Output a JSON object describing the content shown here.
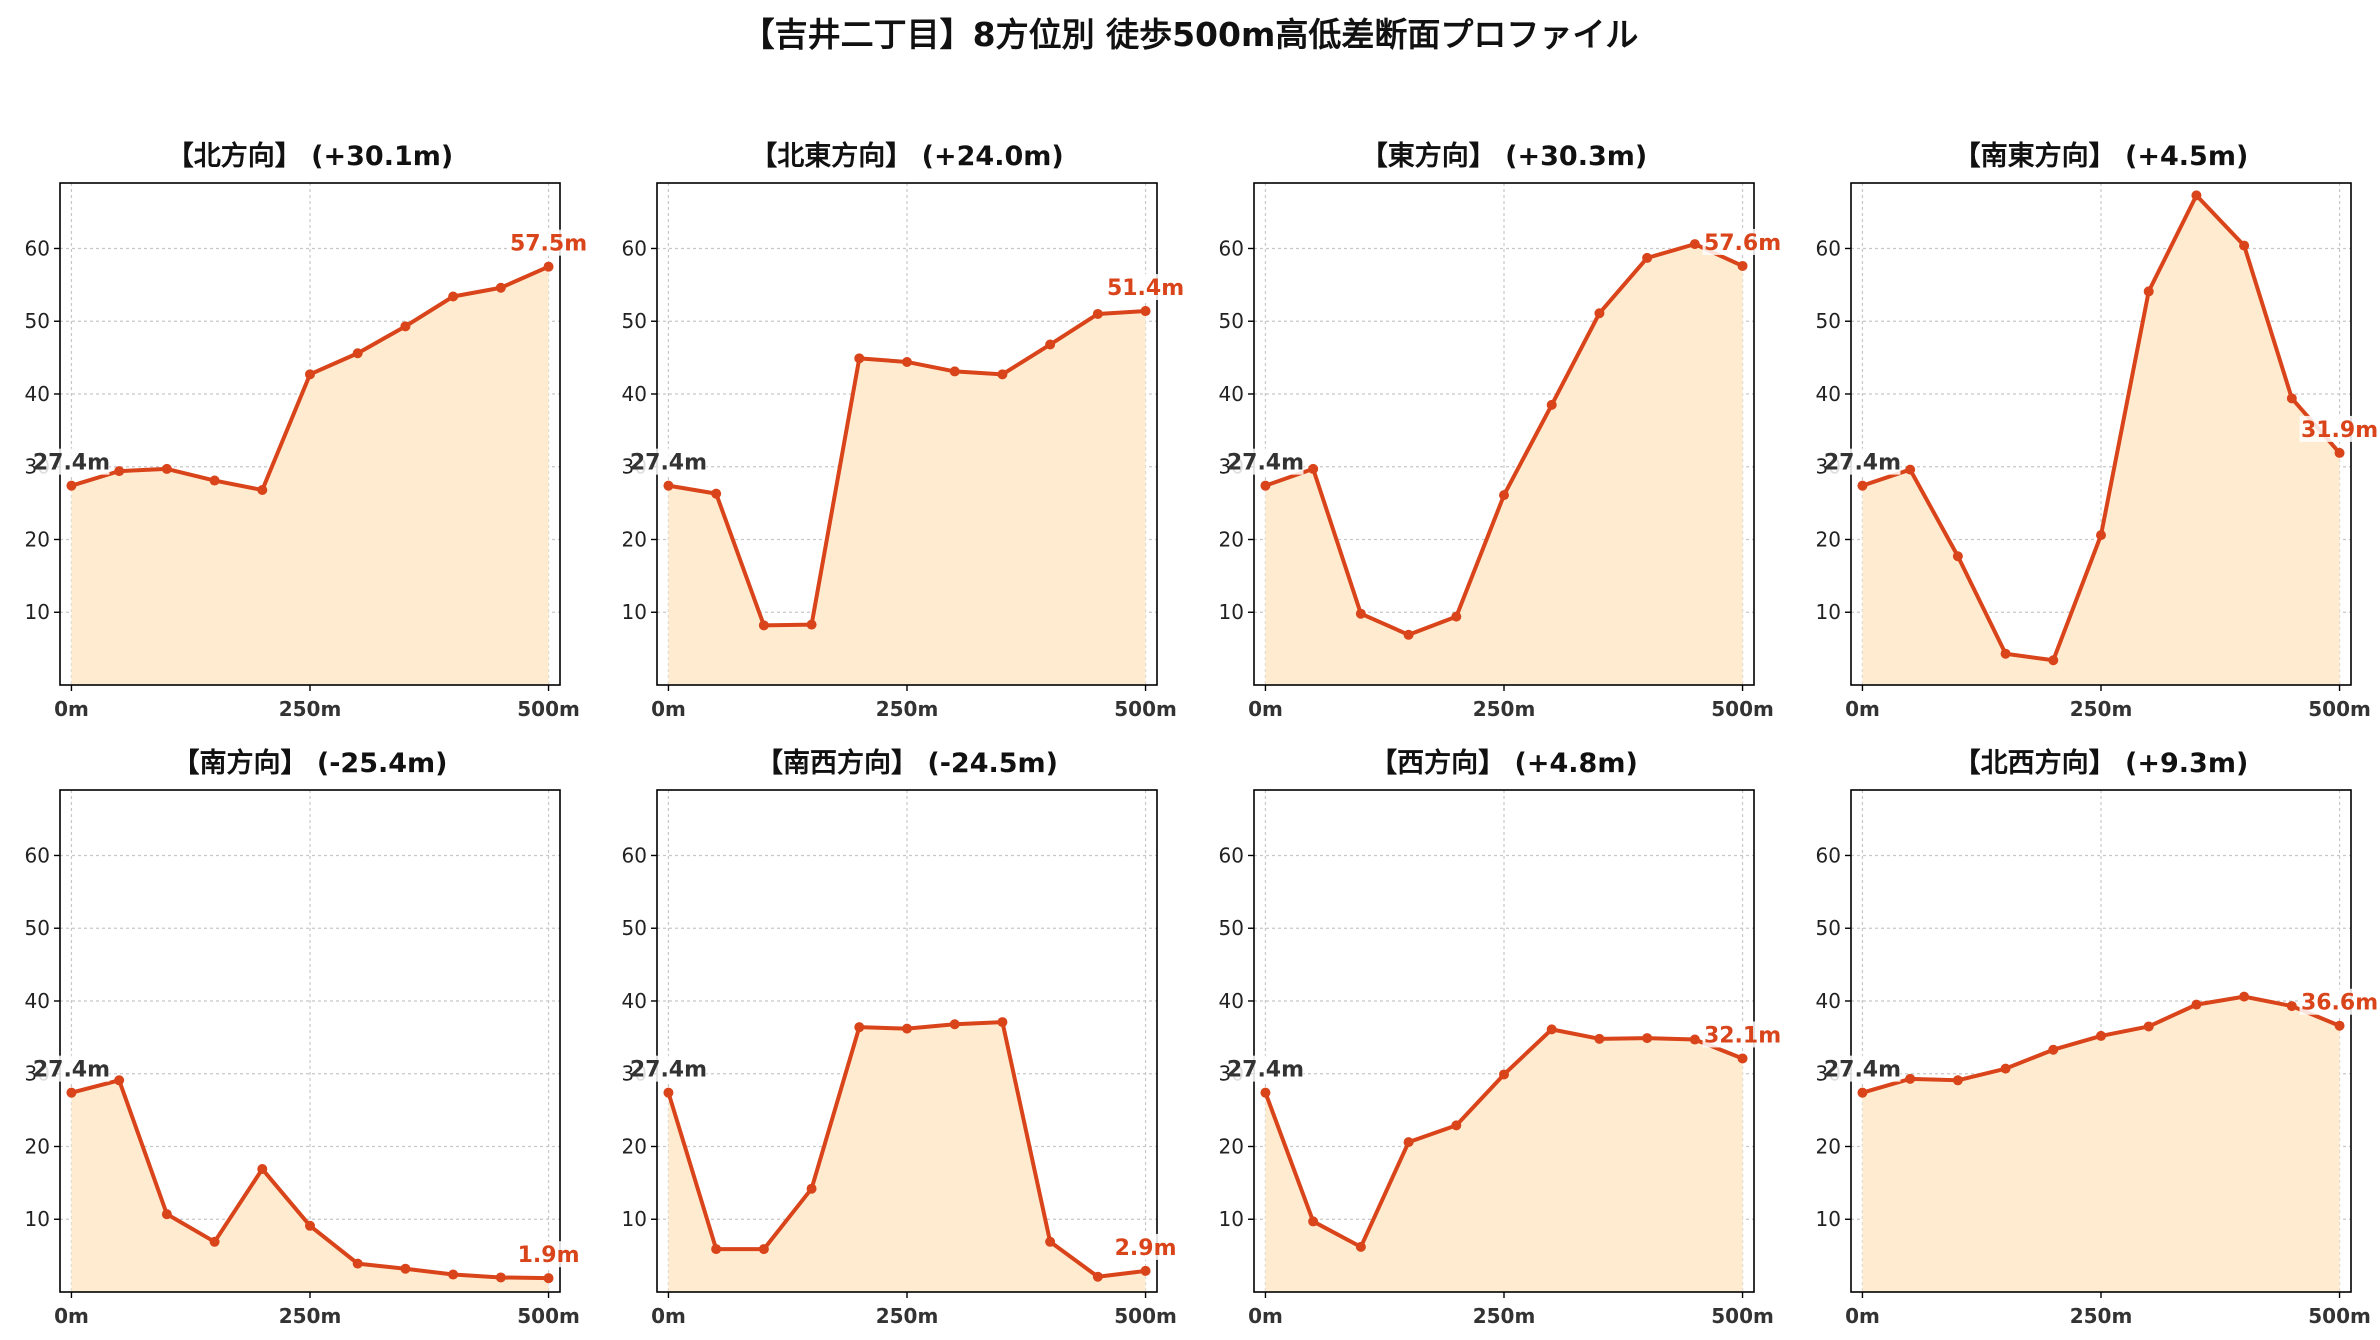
{
  "title": "【吉井二丁目】8方位別 徒歩500m高低差断面プロファイル",
  "colors": {
    "line": "#d9441a",
    "fill": "#ffecd0",
    "start_label": "#333333",
    "end_label": "#d9441a",
    "grid": "#c8c8c8"
  },
  "chart_data": [
    {
      "type": "area",
      "title": "【北方向】 (+30.1m)",
      "x": [
        0,
        50,
        100,
        150,
        200,
        250,
        300,
        350,
        400,
        450,
        500
      ],
      "y": [
        27.4,
        29.4,
        29.7,
        28.1,
        26.8,
        42.7,
        45.6,
        49.3,
        53.4,
        54.6,
        57.5
      ],
      "start_label": "27.4m",
      "end_label": "57.5m",
      "xticks": [
        "0m",
        "250m",
        "500m"
      ],
      "yticks": [
        10,
        20,
        30,
        40,
        50,
        60
      ],
      "ylim": [
        0,
        69
      ],
      "xlim": [
        -12,
        512
      ],
      "grid": true
    },
    {
      "type": "area",
      "title": "【北東方向】 (+24.0m)",
      "x": [
        0,
        50,
        100,
        150,
        200,
        250,
        300,
        350,
        400,
        450,
        500
      ],
      "y": [
        27.4,
        26.3,
        8.2,
        8.3,
        44.9,
        44.4,
        43.1,
        42.7,
        46.8,
        51.0,
        51.4
      ],
      "start_label": "27.4m",
      "end_label": "51.4m",
      "xticks": [
        "0m",
        "250m",
        "500m"
      ],
      "yticks": [
        10,
        20,
        30,
        40,
        50,
        60
      ],
      "ylim": [
        0,
        69
      ],
      "xlim": [
        -12,
        512
      ],
      "grid": true
    },
    {
      "type": "area",
      "title": "【東方向】 (+30.3m)",
      "x": [
        0,
        50,
        100,
        150,
        200,
        250,
        300,
        350,
        400,
        450,
        500
      ],
      "y": [
        27.4,
        29.7,
        9.8,
        6.9,
        9.4,
        26.1,
        38.5,
        51.1,
        58.7,
        60.6,
        57.6
      ],
      "start_label": "27.4m",
      "end_label": "57.6m",
      "xticks": [
        "0m",
        "250m",
        "500m"
      ],
      "yticks": [
        10,
        20,
        30,
        40,
        50,
        60
      ],
      "ylim": [
        0,
        69
      ],
      "xlim": [
        -12,
        512
      ],
      "grid": true
    },
    {
      "type": "area",
      "title": "【南東方向】 (+4.5m)",
      "x": [
        0,
        50,
        100,
        150,
        200,
        250,
        300,
        350,
        400,
        450,
        500
      ],
      "y": [
        27.4,
        29.6,
        17.7,
        4.3,
        3.4,
        20.6,
        54.1,
        67.3,
        60.4,
        39.4,
        31.9
      ],
      "start_label": "27.4m",
      "end_label": "31.9m",
      "xticks": [
        "0m",
        "250m",
        "500m"
      ],
      "yticks": [
        10,
        20,
        30,
        40,
        50,
        60
      ],
      "ylim": [
        0,
        69
      ],
      "xlim": [
        -12,
        512
      ],
      "grid": true
    },
    {
      "type": "area",
      "title": "【南方向】 (-25.4m)",
      "x": [
        0,
        50,
        100,
        150,
        200,
        250,
        300,
        350,
        400,
        450,
        500
      ],
      "y": [
        27.4,
        29.1,
        10.7,
        6.9,
        16.9,
        9.1,
        3.9,
        3.2,
        2.4,
        2.0,
        1.9
      ],
      "start_label": "27.4m",
      "end_label": "1.9m",
      "xticks": [
        "0m",
        "250m",
        "500m"
      ],
      "yticks": [
        10,
        20,
        30,
        40,
        50,
        60
      ],
      "ylim": [
        0,
        69
      ],
      "xlim": [
        -12,
        512
      ],
      "grid": true
    },
    {
      "type": "area",
      "title": "【南西方向】 (-24.5m)",
      "x": [
        0,
        50,
        100,
        150,
        200,
        250,
        300,
        350,
        400,
        450,
        500
      ],
      "y": [
        27.4,
        5.9,
        5.9,
        14.2,
        36.4,
        36.2,
        36.8,
        37.1,
        6.9,
        2.1,
        2.9
      ],
      "start_label": "27.4m",
      "end_label": "2.9m",
      "xticks": [
        "0m",
        "250m",
        "500m"
      ],
      "yticks": [
        10,
        20,
        30,
        40,
        50,
        60
      ],
      "ylim": [
        0,
        69
      ],
      "xlim": [
        -12,
        512
      ],
      "grid": true
    },
    {
      "type": "area",
      "title": "【西方向】 (+4.8m)",
      "x": [
        0,
        50,
        100,
        150,
        200,
        250,
        300,
        350,
        400,
        450,
        500
      ],
      "y": [
        27.4,
        9.7,
        6.2,
        20.6,
        22.9,
        29.9,
        36.1,
        34.8,
        34.9,
        34.7,
        32.1
      ],
      "start_label": "27.4m",
      "end_label": "32.1m",
      "xticks": [
        "0m",
        "250m",
        "500m"
      ],
      "yticks": [
        10,
        20,
        30,
        40,
        50,
        60
      ],
      "ylim": [
        0,
        69
      ],
      "xlim": [
        -12,
        512
      ],
      "grid": true
    },
    {
      "type": "area",
      "title": "【北西方向】 (+9.3m)",
      "x": [
        0,
        50,
        100,
        150,
        200,
        250,
        300,
        350,
        400,
        450,
        500
      ],
      "y": [
        27.4,
        29.3,
        29.1,
        30.7,
        33.3,
        35.2,
        36.5,
        39.5,
        40.6,
        39.3,
        36.6
      ],
      "start_label": "27.4m",
      "end_label": "36.6m",
      "xticks": [
        "0m",
        "250m",
        "500m"
      ],
      "yticks": [
        10,
        20,
        30,
        40,
        50,
        60
      ],
      "ylim": [
        0,
        69
      ],
      "xlim": [
        -12,
        512
      ],
      "grid": true
    }
  ]
}
